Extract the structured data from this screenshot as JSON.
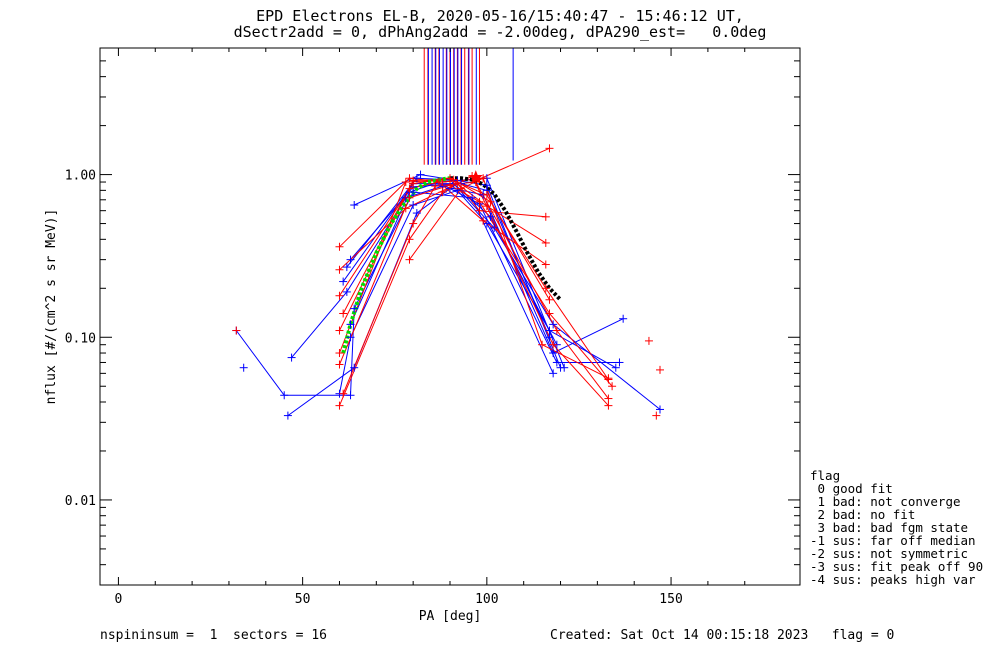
{
  "chart_data": {
    "type": "scatter",
    "title": "EPD Electrons EL-B, 2020-05-16/15:40:47 - 15:46:12 UT,",
    "subtitle": "dSectr2add = 0, dPhAng2add = -2.00deg, dPA290_est=   0.0deg",
    "xlabel": "PA [deg]",
    "ylabel": "nflux [#/(cm^2 s sr MeV)]",
    "xlim": [
      -5,
      185
    ],
    "ylim": [
      0.003,
      6.0
    ],
    "yscale": "log",
    "x_ticks": [
      0,
      50,
      100,
      150
    ],
    "x_tick_labels": [
      "0",
      "50",
      "100",
      "150"
    ],
    "y_ticks": [
      0.01,
      0.1,
      1.0
    ],
    "y_tick_labels": [
      "0.01",
      "0.10",
      "1.00"
    ],
    "series_colors": [
      "#ff0000",
      "#0000ff"
    ],
    "scan_lines": [
      {
        "color": "#0000ff",
        "lines": [
          [
            [
              32,
              0.11
            ],
            [
              45,
              0.044
            ],
            [
              63,
              0.044
            ],
            [
              64,
              0.15
            ],
            [
              80,
              0.78
            ],
            [
              96,
              0.72
            ],
            [
              118,
              0.06
            ]
          ],
          [
            [
              47,
              0.075
            ],
            [
              62,
              0.19
            ],
            [
              78,
              0.72
            ],
            [
              88,
              0.85
            ],
            [
              99,
              0.75
            ],
            [
              118,
              0.08
            ],
            [
              137,
              0.13
            ]
          ],
          [
            [
              46,
              0.033
            ],
            [
              64,
              0.065
            ],
            [
              81,
              0.58
            ],
            [
              90,
              0.82
            ],
            [
              98,
              0.66
            ],
            [
              119,
              0.07
            ],
            [
              136,
              0.07
            ]
          ],
          [
            [
              60,
              0.045
            ],
            [
              63,
              0.1
            ],
            [
              80,
              0.65
            ],
            [
              92,
              0.8
            ],
            [
              100,
              0.5
            ],
            [
              117,
              0.11
            ],
            [
              135,
              0.065
            ]
          ],
          [
            [
              63,
              0.3
            ],
            [
              80,
              0.84
            ],
            [
              91,
              0.88
            ],
            [
              101,
              0.55
            ],
            [
              119,
              0.09
            ]
          ],
          [
            [
              64,
              0.65
            ],
            [
              82,
              1.0
            ],
            [
              92,
              0.92
            ],
            [
              100,
              0.86
            ],
            [
              120,
              0.065
            ]
          ],
          [
            [
              62,
              0.27
            ],
            [
              81,
              0.95
            ],
            [
              90,
              0.93
            ],
            [
              102,
              0.47
            ],
            [
              118,
              0.12
            ],
            [
              147,
              0.036
            ]
          ],
          [
            [
              63,
              0.12
            ],
            [
              79,
              0.78
            ],
            [
              87,
              0.9
            ],
            [
              100,
              0.95
            ],
            [
              121,
              0.065
            ]
          ],
          [
            [
              61,
              0.22
            ],
            [
              80,
              0.88
            ],
            [
              93,
              0.88
            ],
            [
              100,
              0.8
            ],
            [
              117,
              0.1
            ]
          ]
        ]
      },
      {
        "color": "#ff0000",
        "lines": [
          [
            [
              60,
              0.36
            ],
            [
              79,
              0.95
            ],
            [
              88,
              0.9
            ],
            [
              98,
              0.94
            ],
            [
              117,
              1.45
            ]
          ],
          [
            [
              60,
              0.26
            ],
            [
              78,
              0.62
            ],
            [
              92,
              0.88
            ],
            [
              98,
              0.6
            ],
            [
              116,
              0.55
            ]
          ],
          [
            [
              60,
              0.18
            ],
            [
              80,
              0.88
            ],
            [
              90,
              0.95
            ],
            [
              100,
              0.64
            ],
            [
              116,
              0.38
            ]
          ],
          [
            [
              60,
              0.11
            ],
            [
              79,
              0.82
            ],
            [
              87,
              0.9
            ],
            [
              99,
              0.52
            ],
            [
              116,
              0.28
            ]
          ],
          [
            [
              60,
              0.08
            ],
            [
              78,
              0.9
            ],
            [
              91,
              0.93
            ],
            [
              101,
              0.68
            ],
            [
              116,
              0.2
            ],
            [
              133,
              0.055
            ]
          ],
          [
            [
              60,
              0.068
            ],
            [
              79,
              0.72
            ],
            [
              90,
              0.86
            ],
            [
              98,
              0.68
            ],
            [
              117,
              0.14
            ],
            [
              134,
              0.05
            ]
          ],
          [
            [
              61,
              0.045
            ],
            [
              80,
              0.5
            ],
            [
              86,
              0.85
            ],
            [
              97,
              0.9
            ],
            [
              119,
              0.11
            ],
            [
              133,
              0.042
            ]
          ],
          [
            [
              60,
              0.038
            ],
            [
              79,
              0.4
            ],
            [
              88,
              0.78
            ],
            [
              96,
              0.98
            ],
            [
              118,
              0.09
            ],
            [
              133,
              0.038
            ]
          ],
          [
            [
              79,
              0.3
            ],
            [
              93,
              0.82
            ],
            [
              99,
              0.95
            ],
            [
              115,
              0.09
            ],
            [
              133,
              0.056
            ]
          ],
          [
            [
              61,
              0.14
            ],
            [
              80,
              0.92
            ],
            [
              90,
              0.94
            ],
            [
              100,
              0.75
            ],
            [
              117,
              0.17
            ]
          ]
        ]
      }
    ],
    "isolated_points": [
      {
        "color": "#ff0000",
        "x": 32,
        "y": 0.11
      },
      {
        "color": "#0000ff",
        "x": 34,
        "y": 0.065
      },
      {
        "color": "#ff0000",
        "x": 144,
        "y": 0.095
      },
      {
        "color": "#ff0000",
        "x": 147,
        "y": 0.063
      },
      {
        "color": "#ff0000",
        "x": 146,
        "y": 0.033
      }
    ],
    "fit_green": {
      "color": "#00dd00",
      "points": [
        [
          61,
          0.08
        ],
        [
          63,
          0.12
        ],
        [
          66,
          0.2
        ],
        [
          70,
          0.33
        ],
        [
          74,
          0.5
        ],
        [
          78,
          0.68
        ],
        [
          81,
          0.82
        ],
        [
          84,
          0.9
        ],
        [
          87,
          0.93
        ],
        [
          90,
          0.95
        ]
      ]
    },
    "fit_black": {
      "color": "#000000",
      "points": [
        [
          90,
          0.95
        ],
        [
          93,
          0.95
        ],
        [
          96,
          0.93
        ],
        [
          99,
          0.87
        ],
        [
          102,
          0.76
        ],
        [
          105,
          0.6
        ],
        [
          108,
          0.45
        ],
        [
          111,
          0.33
        ],
        [
          114,
          0.25
        ],
        [
          117,
          0.2
        ],
        [
          120,
          0.17
        ]
      ]
    },
    "marker_star": {
      "color": "#ff0000",
      "x": 97,
      "y": 0.96
    },
    "vertical_lines": {
      "y_top": 6.0,
      "y_bottom": 1.15,
      "red_x": [
        83,
        84,
        86,
        87,
        89,
        90,
        91,
        92,
        93,
        94,
        95,
        96,
        98
      ],
      "blue_x": [
        84,
        85,
        86,
        87,
        88,
        89,
        90,
        91,
        92,
        93,
        95,
        97,
        107
      ],
      "blue_tall_x": 107,
      "blue_tall_bottom": 1.22
    }
  },
  "legend": {
    "title": "flag",
    "items": [
      " 0 good fit",
      " 1 bad: not converge",
      " 2 bad: no fit",
      " 3 bad: bad fgm state",
      "-1 sus: far off median",
      "-2 sus: not symmetric",
      "-3 sus: fit peak off 90",
      "-4 sus: peaks high var"
    ]
  },
  "footer": {
    "left": "nspininsum =  1  sectors = 16",
    "right": "Created: Sat Oct 14 00:15:18 2023   flag = 0"
  }
}
